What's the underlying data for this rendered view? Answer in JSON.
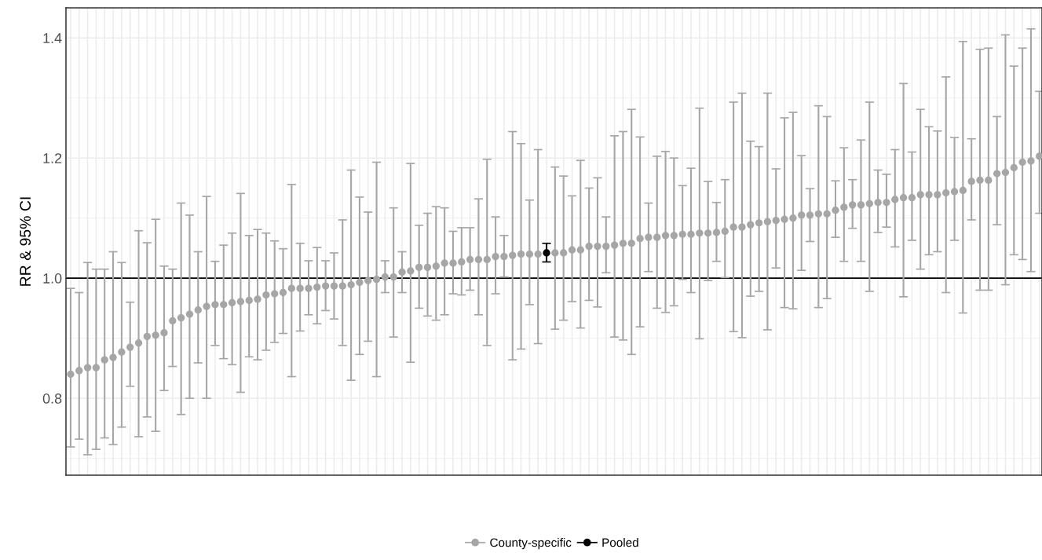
{
  "chart_data": {
    "type": "scatter",
    "ylabel": "RR & 95% CI",
    "categories": [
      null,
      null,
      null,
      null,
      null,
      null,
      null,
      null,
      null,
      null,
      null,
      null,
      null,
      null,
      null,
      null,
      null,
      null,
      null,
      null,
      null,
      null,
      null,
      null,
      null,
      null,
      null,
      null,
      null,
      null,
      null,
      null,
      null,
      null,
      null,
      null,
      null,
      null,
      null,
      null,
      null,
      null,
      null,
      null,
      null,
      null,
      null,
      null,
      null,
      null,
      null,
      null,
      null,
      null,
      null,
      null,
      null,
      null,
      null,
      null,
      null,
      null,
      null,
      null,
      null,
      null,
      null,
      null,
      null,
      null,
      null,
      null,
      null,
      null,
      null,
      null,
      null,
      null,
      null,
      null,
      null,
      null,
      null,
      null,
      null,
      null,
      null,
      null,
      null,
      null,
      null,
      null,
      null,
      null,
      null,
      null,
      null,
      null,
      null,
      null,
      null,
      null,
      null,
      null,
      null,
      null,
      null,
      null,
      null,
      null,
      null,
      null,
      null,
      null,
      null
    ],
    "series": [
      {
        "name": "County-specific",
        "color": "#a6a6a6",
        "values": [
          0.84,
          0.846,
          0.851,
          0.851,
          0.864,
          0.868,
          0.877,
          0.885,
          0.892,
          0.903,
          0.905,
          0.909,
          0.929,
          0.934,
          0.94,
          0.947,
          0.953,
          0.956,
          0.956,
          0.959,
          0.961,
          0.963,
          0.965,
          0.972,
          0.974,
          0.976,
          0.983,
          0.983,
          0.983,
          0.985,
          0.987,
          0.987,
          0.987,
          0.989,
          0.993,
          0.996,
          0.998,
          1.002,
          1.002,
          1.01,
          1.012,
          1.018,
          1.018,
          1.02,
          1.025,
          1.025,
          1.027,
          1.031,
          1.031,
          1.031,
          1.036,
          1.036,
          1.038,
          1.04,
          1.04,
          1.04,
          null,
          1.042,
          1.042,
          1.047,
          1.047,
          1.053,
          1.053,
          1.053,
          1.055,
          1.058,
          1.058,
          1.066,
          1.068,
          1.068,
          1.071,
          1.071,
          1.073,
          1.073,
          1.075,
          1.075,
          1.076,
          1.078,
          1.085,
          1.085,
          1.089,
          1.092,
          1.094,
          1.096,
          1.098,
          1.1,
          1.105,
          1.105,
          1.107,
          1.107,
          1.113,
          1.118,
          1.122,
          1.122,
          1.124,
          1.126,
          1.126,
          1.131,
          1.134,
          1.134,
          1.139,
          1.139,
          1.139,
          1.142,
          1.144,
          1.146,
          1.161,
          1.163,
          1.163,
          1.174,
          1.176,
          1.184,
          1.193,
          1.195,
          1.203
        ],
        "errors": [
          [
            0.719,
            0.983
          ],
          [
            0.732,
            0.976
          ],
          [
            0.706,
            1.026
          ],
          [
            0.715,
            1.015
          ],
          [
            0.734,
            1.015
          ],
          [
            0.723,
            1.044
          ],
          [
            0.752,
            1.026
          ],
          [
            0.82,
            0.96
          ],
          [
            0.736,
            1.079
          ],
          [
            0.769,
            1.059
          ],
          [
            0.745,
            1.098
          ],
          [
            0.813,
            1.02
          ],
          [
            0.853,
            1.015
          ],
          [
            0.773,
            1.125
          ],
          [
            0.8,
            1.105
          ],
          [
            0.859,
            1.044
          ],
          [
            0.8,
            1.136
          ],
          [
            0.888,
            1.028
          ],
          [
            0.866,
            1.055
          ],
          [
            0.856,
            1.075
          ],
          [
            0.81,
            1.141
          ],
          [
            0.869,
            1.071
          ],
          [
            0.864,
            1.081
          ],
          [
            0.88,
            1.075
          ],
          [
            0.893,
            1.062
          ],
          [
            0.908,
            1.049
          ],
          [
            0.836,
            1.156
          ],
          [
            0.912,
            1.058
          ],
          [
            0.939,
            1.029
          ],
          [
            0.924,
            1.051
          ],
          [
            0.946,
            1.029
          ],
          [
            0.932,
            1.042
          ],
          [
            0.888,
            1.097
          ],
          [
            0.83,
            1.18
          ],
          [
            0.873,
            1.135
          ],
          [
            0.895,
            1.11
          ],
          [
            0.836,
            1.193
          ],
          [
            0.976,
            1.029
          ],
          [
            0.902,
            1.117
          ],
          [
            0.976,
            1.044
          ],
          [
            0.86,
            1.191
          ],
          [
            0.95,
            1.088
          ],
          [
            0.937,
            1.108
          ],
          [
            0.93,
            1.119
          ],
          [
            0.939,
            1.117
          ],
          [
            0.974,
            1.078
          ],
          [
            0.972,
            1.084
          ],
          [
            0.98,
            1.084
          ],
          [
            0.939,
            1.132
          ],
          [
            0.888,
            1.198
          ],
          [
            0.974,
            1.102
          ],
          [
            1.002,
            1.071
          ],
          [
            0.864,
            1.244
          ],
          [
            0.882,
            1.224
          ],
          [
            0.956,
            1.13
          ],
          [
            0.891,
            1.214
          ],
          null,
          [
            0.915,
            1.185
          ],
          [
            0.93,
            1.17
          ],
          [
            0.961,
            1.137
          ],
          [
            0.917,
            1.196
          ],
          [
            0.963,
            1.15
          ],
          [
            0.952,
            1.167
          ],
          [
            1.009,
            1.102
          ],
          [
            0.902,
            1.237
          ],
          [
            0.897,
            1.244
          ],
          [
            0.873,
            1.281
          ],
          [
            0.919,
            1.235
          ],
          [
            1.011,
            1.125
          ],
          [
            0.95,
            1.203
          ],
          [
            0.943,
            1.211
          ],
          [
            0.954,
            1.2
          ],
          [
            0.998,
            1.154
          ],
          [
            0.976,
            1.183
          ],
          [
            0.899,
            1.283
          ],
          [
            0.996,
            1.161
          ],
          [
            1.028,
            1.126
          ],
          [
            1.001,
            1.164
          ],
          [
            0.911,
            1.293
          ],
          [
            0.901,
            1.308
          ],
          [
            0.97,
            1.228
          ],
          [
            0.978,
            1.219
          ],
          [
            0.914,
            1.308
          ],
          [
            1.017,
            1.182
          ],
          [
            0.951,
            1.267
          ],
          [
            0.949,
            1.276
          ],
          [
            1.013,
            1.204
          ],
          [
            1.061,
            1.149
          ],
          [
            0.951,
            1.287
          ],
          [
            0.966,
            1.269
          ],
          [
            1.068,
            1.162
          ],
          [
            1.028,
            1.217
          ],
          [
            1.083,
            1.164
          ],
          [
            1.028,
            1.23
          ],
          [
            0.978,
            1.293
          ],
          [
            1.076,
            1.18
          ],
          [
            1.085,
            1.173
          ],
          [
            1.052,
            1.214
          ],
          [
            0.969,
            1.324
          ],
          [
            1.063,
            1.21
          ],
          [
            1.015,
            1.281
          ],
          [
            1.039,
            1.252
          ],
          [
            1.044,
            1.245
          ],
          [
            0.976,
            1.335
          ],
          [
            1.063,
            1.234
          ],
          [
            0.942,
            1.394
          ],
          [
            1.097,
            1.232
          ],
          [
            0.98,
            1.381
          ],
          [
            0.98,
            1.383
          ],
          [
            1.089,
            1.269
          ],
          [
            0.989,
            1.405
          ],
          [
            1.039,
            1.353
          ],
          [
            1.031,
            1.383
          ],
          [
            1.011,
            1.415
          ],
          [
            1.108,
            1.311
          ]
        ]
      },
      {
        "name": "Pooled",
        "color": "#000000",
        "values": [
          null,
          null,
          null,
          null,
          null,
          null,
          null,
          null,
          null,
          null,
          null,
          null,
          null,
          null,
          null,
          null,
          null,
          null,
          null,
          null,
          null,
          null,
          null,
          null,
          null,
          null,
          null,
          null,
          null,
          null,
          null,
          null,
          null,
          null,
          null,
          null,
          null,
          null,
          null,
          null,
          null,
          null,
          null,
          null,
          null,
          null,
          null,
          null,
          null,
          null,
          null,
          null,
          null,
          null,
          null,
          null,
          1.042,
          null,
          null,
          null,
          null,
          null,
          null,
          null,
          null,
          null,
          null,
          null,
          null,
          null,
          null,
          null,
          null,
          null,
          null,
          null,
          null,
          null,
          null,
          null,
          null,
          null,
          null,
          null,
          null,
          null,
          null,
          null,
          null,
          null,
          null,
          null,
          null,
          null,
          null,
          null,
          null,
          null,
          null,
          null,
          null,
          null,
          null,
          null,
          null,
          null,
          null,
          null,
          null,
          null,
          null,
          null,
          null,
          null,
          null
        ],
        "errors": [
          null,
          null,
          null,
          null,
          null,
          null,
          null,
          null,
          null,
          null,
          null,
          null,
          null,
          null,
          null,
          null,
          null,
          null,
          null,
          null,
          null,
          null,
          null,
          null,
          null,
          null,
          null,
          null,
          null,
          null,
          null,
          null,
          null,
          null,
          null,
          null,
          null,
          null,
          null,
          null,
          null,
          null,
          null,
          null,
          null,
          null,
          null,
          null,
          null,
          null,
          null,
          null,
          null,
          null,
          null,
          null,
          [
            1.027,
            1.058
          ],
          null,
          null,
          null,
          null,
          null,
          null,
          null,
          null,
          null,
          null,
          null,
          null,
          null,
          null,
          null,
          null,
          null,
          null,
          null,
          null,
          null,
          null,
          null,
          null,
          null,
          null,
          null,
          null,
          null,
          null,
          null,
          null,
          null,
          null,
          null,
          null,
          null,
          null,
          null,
          null,
          null,
          null,
          null,
          null,
          null,
          null,
          null,
          null,
          null,
          null,
          null,
          null,
          null,
          null,
          null,
          null,
          null,
          null
        ]
      }
    ],
    "ylim": [
      0.672,
      1.45
    ],
    "yticks": [
      {
        "value": 0.8,
        "label": "0.8"
      },
      {
        "value": 1.0,
        "label": "1.0"
      },
      {
        "value": 1.2,
        "label": "1.2"
      },
      {
        "value": 1.4,
        "label": "1.4"
      }
    ],
    "ref_lines": [
      {
        "axis": "y",
        "value": 1.0,
        "color": "#000000",
        "line_style": "solid"
      }
    ],
    "grid": true,
    "legend": "bottom",
    "marker": "circle",
    "tick_labels": "y"
  }
}
